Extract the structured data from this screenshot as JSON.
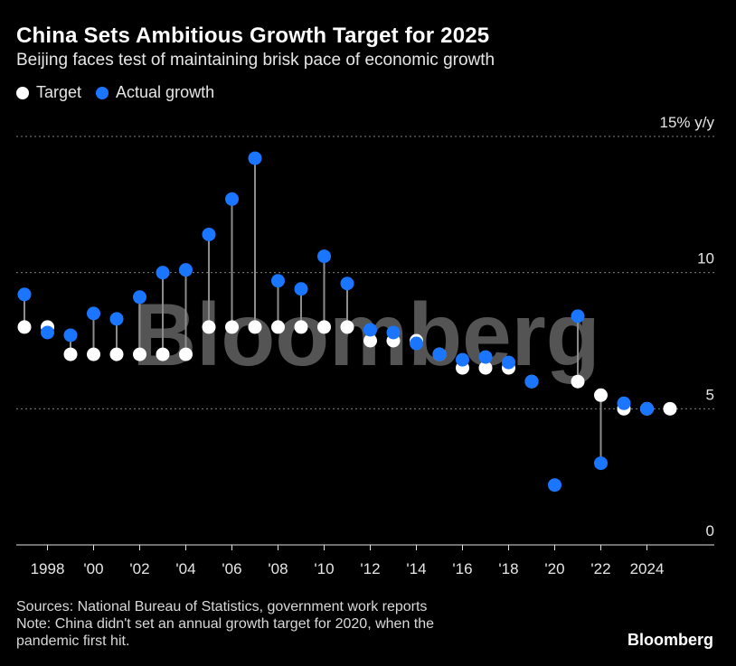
{
  "title": "China Sets Ambitious Growth Target for 2025",
  "subtitle": "Beijing faces test of maintaining brisk pace of economic growth",
  "legend": [
    {
      "label": "Target",
      "color": "#ffffff"
    },
    {
      "label": "Actual growth",
      "color": "#1a75ff"
    }
  ],
  "watermark": "Bloomberg",
  "notes": {
    "sources": "Sources: National Bureau of Statistics, government work reports",
    "note_line1": "Note: China didn't set an annual growth target for 2020, when the",
    "note_line2": "pandemic first hit."
  },
  "brand": "Bloomberg",
  "colors": {
    "background": "#000000",
    "target": "#ffffff",
    "actual": "#1a75ff",
    "stem": "#8c8c8c",
    "grid": "#7f7f7f"
  },
  "chart_data": {
    "type": "scatter",
    "title": "China Sets Ambitious Growth Target for 2025",
    "xlabel": "",
    "ylabel": "% y/y",
    "ylim": [
      0,
      15
    ],
    "xlim": [
      1997,
      2025
    ],
    "yticks": [
      {
        "value": 15,
        "label": "15% y/y"
      },
      {
        "value": 10,
        "label": "10"
      },
      {
        "value": 5,
        "label": "5"
      },
      {
        "value": 0,
        "label": "0"
      }
    ],
    "xticks": [
      {
        "value": 1998,
        "label": "1998"
      },
      {
        "value": 2000,
        "label": "'00"
      },
      {
        "value": 2002,
        "label": "'02"
      },
      {
        "value": 2004,
        "label": "'04"
      },
      {
        "value": 2006,
        "label": "'06"
      },
      {
        "value": 2008,
        "label": "'08"
      },
      {
        "value": 2010,
        "label": "'10"
      },
      {
        "value": 2012,
        "label": "'12"
      },
      {
        "value": 2014,
        "label": "'14"
      },
      {
        "value": 2016,
        "label": "'16"
      },
      {
        "value": 2018,
        "label": "'18"
      },
      {
        "value": 2020,
        "label": "'20"
      },
      {
        "value": 2022,
        "label": "'22"
      },
      {
        "value": 2024,
        "label": "2024"
      }
    ],
    "grid": true,
    "series": [
      {
        "name": "Target",
        "years": [
          1997,
          1998,
          1999,
          2000,
          2001,
          2002,
          2003,
          2004,
          2005,
          2006,
          2007,
          2008,
          2009,
          2010,
          2011,
          2012,
          2013,
          2014,
          2015,
          2016,
          2017,
          2018,
          2019,
          2021,
          2022,
          2023,
          2024,
          2025
        ],
        "values": [
          8,
          8,
          7,
          7,
          7,
          7,
          7,
          7,
          8,
          8,
          8,
          8,
          8,
          8,
          8,
          7.5,
          7.5,
          7.5,
          7,
          6.5,
          6.5,
          6.5,
          6,
          6,
          5.5,
          5,
          5,
          5
        ]
      },
      {
        "name": "Actual growth",
        "years": [
          1997,
          1998,
          1999,
          2000,
          2001,
          2002,
          2003,
          2004,
          2005,
          2006,
          2007,
          2008,
          2009,
          2010,
          2011,
          2012,
          2013,
          2014,
          2015,
          2016,
          2017,
          2018,
          2019,
          2020,
          2021,
          2022,
          2023,
          2024
        ],
        "values": [
          9.2,
          7.8,
          7.7,
          8.5,
          8.3,
          9.1,
          10.0,
          10.1,
          11.4,
          12.7,
          14.2,
          9.7,
          9.4,
          10.6,
          9.6,
          7.9,
          7.8,
          7.4,
          7.0,
          6.8,
          6.9,
          6.7,
          6.0,
          2.2,
          8.4,
          3.0,
          5.2,
          5.0
        ]
      }
    ]
  }
}
